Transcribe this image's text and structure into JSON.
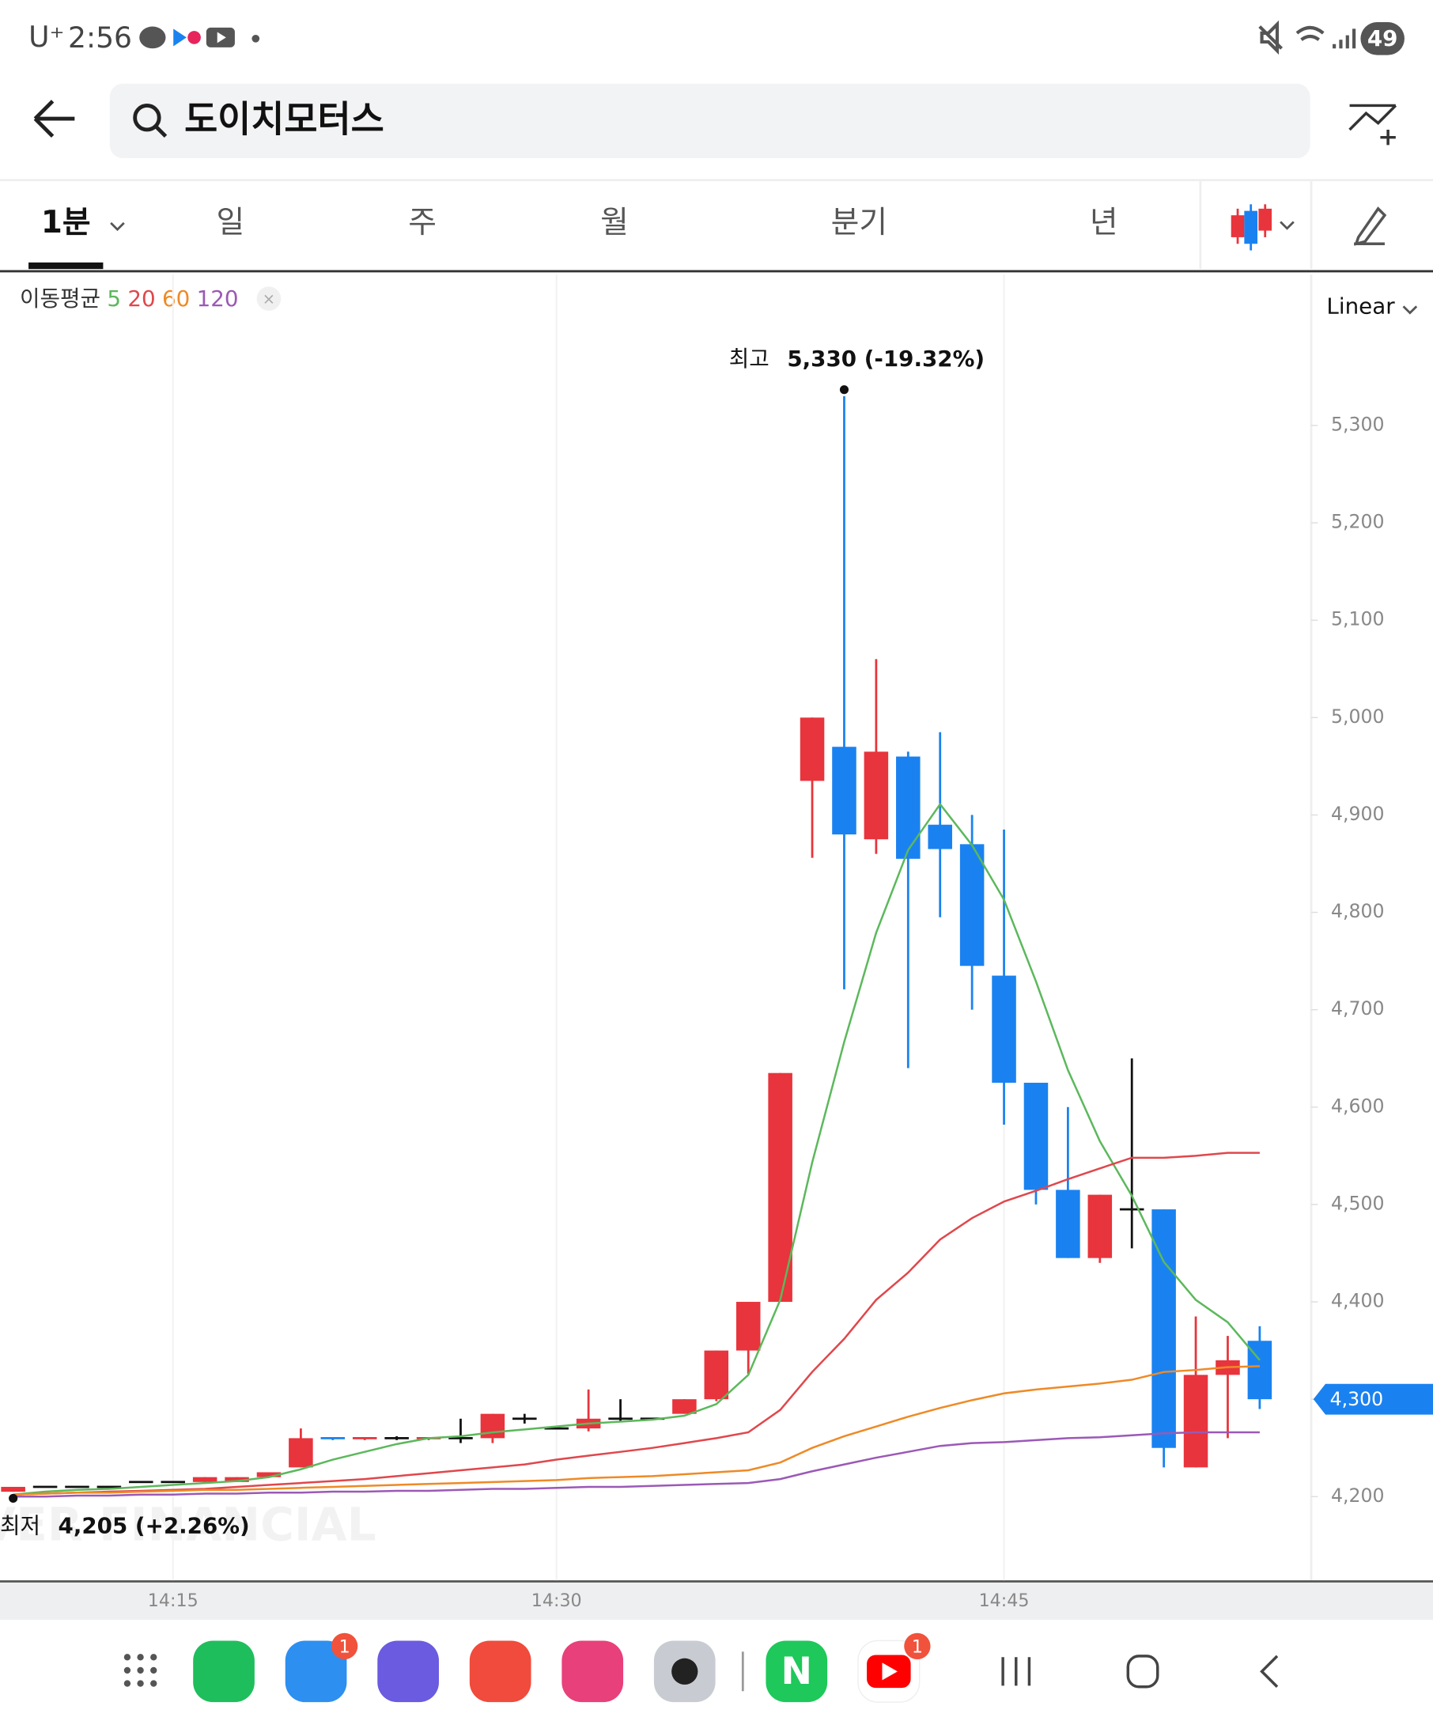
{
  "status_bar": {
    "carrier": "U⁺",
    "time": "2:56",
    "battery": "49"
  },
  "header": {
    "search_text": "도이치모터스"
  },
  "tabs": [
    "1분",
    "일",
    "주",
    "월",
    "분기",
    "년"
  ],
  "indicator": {
    "label": "이동평균"
  },
  "scale_mode": "Linear",
  "chart_data": {
    "type": "candlestick",
    "watermark": "NAVER FINANCIAL",
    "categories": [
      null,
      null,
      null,
      null,
      null,
      "14:15",
      null,
      null,
      null,
      null,
      null,
      null,
      null,
      null,
      null,
      null,
      null,
      "14:30",
      null,
      null,
      null,
      null,
      null,
      null,
      null,
      null,
      null,
      null,
      null,
      null,
      null,
      "14:45",
      null,
      null,
      null,
      null,
      null,
      null,
      null,
      null
    ],
    "open": [
      4205,
      4210,
      4210,
      4210,
      4215,
      4215,
      4215,
      4215,
      4220,
      4230,
      4260,
      4258,
      4260,
      4258,
      4260,
      4260,
      4280,
      4270,
      4270,
      4280,
      4280,
      4285,
      4300,
      4350,
      4400,
      4935,
      4970,
      4875,
      4960,
      4890,
      4870,
      4735,
      4625,
      4515,
      4445,
      4495,
      4495,
      4230,
      4325,
      4360
    ],
    "high": [
      4210,
      4210,
      4210,
      4210,
      4215,
      4215,
      4220,
      4220,
      4225,
      4270,
      4260,
      4260,
      4262,
      4260,
      4280,
      4285,
      4285,
      4270,
      4310,
      4300,
      4280,
      4300,
      4350,
      4400,
      4635,
      5000,
      5330,
      5060,
      4965,
      4985,
      4900,
      4885,
      4625,
      4600,
      4510,
      4650,
      4495,
      4385,
      4365,
      4375
    ],
    "low": [
      4205,
      4210,
      4210,
      4210,
      4215,
      4215,
      4215,
      4215,
      4220,
      4230,
      4258,
      4258,
      4258,
      4258,
      4255,
      4255,
      4275,
      4270,
      4267,
      4277,
      4280,
      4285,
      4298,
      4326,
      4400,
      4856,
      4721,
      4860,
      4640,
      4795,
      4700,
      4582,
      4500,
      4445,
      4440,
      4455,
      4230,
      4230,
      4260,
      4290
    ],
    "close": [
      4210,
      4210,
      4210,
      4210,
      4215,
      4215,
      4220,
      4220,
      4225,
      4260,
      4258,
      4260,
      4260,
      4260,
      4260,
      4285,
      4280,
      4270,
      4280,
      4280,
      4280,
      4300,
      4350,
      4400,
      4635,
      5000,
      4880,
      4965,
      4855,
      4865,
      4745,
      4625,
      4515,
      4445,
      4510,
      4495,
      4250,
      4325,
      4340,
      4300
    ],
    "up_color": "#e8343c",
    "down_color": "#1a82f0",
    "flat_color": "#111111",
    "series": [
      {
        "name": "5",
        "color": "#5cb85c",
        "values": [
          4202,
          4205,
          4207,
          4208,
          4210,
          4212,
          4214,
          4216,
          4220,
          4228,
          4238,
          4246,
          4254,
          4260,
          4262,
          4266,
          4269,
          4272,
          4275,
          4277,
          4279,
          4283,
          4295,
          4325,
          4402,
          4543,
          4667,
          4779,
          4864,
          4911,
          4869,
          4813,
          4729,
          4638,
          4565,
          4509,
          4441,
          4402,
          4379,
          4340
        ]
      },
      {
        "name": "20",
        "color": "#e0474c",
        "values": [
          4202,
          4203,
          4204,
          4205,
          4206,
          4207,
          4208,
          4210,
          4212,
          4214,
          4216,
          4218,
          4221,
          4224,
          4227,
          4230,
          4233,
          4238,
          4242,
          4246,
          4250,
          4255,
          4260,
          4266,
          4289,
          4328,
          4362,
          4402,
          4430,
          4464,
          4486,
          4503,
          4514,
          4526,
          4537,
          4548,
          4548,
          4550,
          4553,
          4553
        ]
      },
      {
        "name": "60",
        "color": "#ee8a26",
        "values": [
          4202,
          4203,
          4204,
          4204,
          4205,
          4206,
          4207,
          4207,
          4208,
          4209,
          4210,
          4211,
          4212,
          4213,
          4214,
          4215,
          4216,
          4217,
          4219,
          4220,
          4221,
          4223,
          4225,
          4227,
          4235,
          4250,
          4262,
          4272,
          4282,
          4291,
          4299,
          4306,
          4310,
          4313,
          4316,
          4320,
          4328,
          4330,
          4333,
          4334
        ]
      },
      {
        "name": "120",
        "color": "#9b59b6",
        "values": [
          4200,
          4200,
          4201,
          4201,
          4202,
          4202,
          4203,
          4203,
          4204,
          4204,
          4205,
          4205,
          4206,
          4206,
          4207,
          4208,
          4208,
          4209,
          4210,
          4210,
          4211,
          4212,
          4213,
          4214,
          4218,
          4226,
          4233,
          4240,
          4246,
          4252,
          4255,
          4256,
          4258,
          4260,
          4261,
          4263,
          4265,
          4266,
          4266,
          4266
        ]
      }
    ],
    "ylim": [
      4114,
      5455
    ],
    "yticks": [
      {
        "value": 4200,
        "label": "4,200"
      },
      {
        "value": 4300,
        "label": "4,300"
      },
      {
        "value": 4400,
        "label": "4,400"
      },
      {
        "value": 4500,
        "label": "4,500"
      },
      {
        "value": 4600,
        "label": "4,600"
      },
      {
        "value": 4700,
        "label": "4,700"
      },
      {
        "value": 4800,
        "label": "4,800"
      },
      {
        "value": 4900,
        "label": "4,900"
      },
      {
        "value": 5000,
        "label": "5,000"
      },
      {
        "value": 5100,
        "label": "5,100"
      },
      {
        "value": 5200,
        "label": "5,200"
      },
      {
        "value": 5300,
        "label": "5,300"
      }
    ],
    "high_annotation": {
      "label": "최고",
      "text": "5,330 (-19.32%)"
    },
    "low_annotation": {
      "label": "최저",
      "text": "4,205 (+2.26%)"
    },
    "current_price_label": "4,300"
  },
  "dock": {
    "badges": [
      "1",
      "1"
    ]
  }
}
